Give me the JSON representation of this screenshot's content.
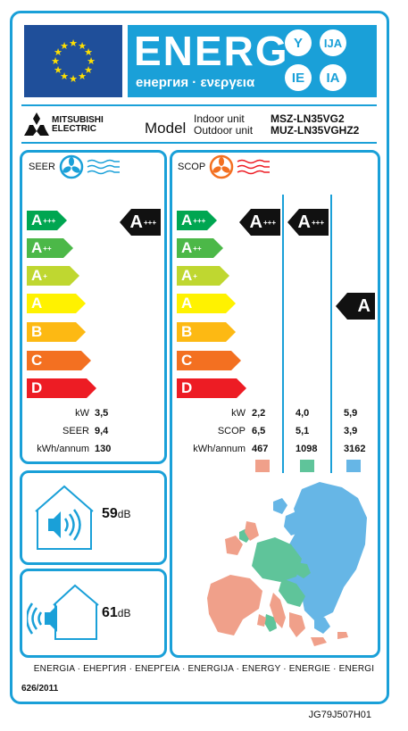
{
  "header": {
    "energy_word": "ENERG",
    "energy_sub": "енергия · ενεργεια",
    "lang_badges": [
      "Y",
      "IJA",
      "IE",
      "IA"
    ]
  },
  "brand": {
    "line1": "MITSUBISHI",
    "line2": "ELECTRIC"
  },
  "model": {
    "label": "Model",
    "indoor_label": "Indoor unit",
    "outdoor_label": "Outdoor unit",
    "indoor_code": "MSZ-LN35VG2",
    "outdoor_code": "MUZ-LN35VGHZ2"
  },
  "seer_panel": {
    "title": "SEER",
    "scale": [
      {
        "label": "A",
        "plus": "+++",
        "color": "#00a651"
      },
      {
        "label": "A",
        "plus": "++",
        "color": "#4cb848"
      },
      {
        "label": "A",
        "plus": "+",
        "color": "#bfd730"
      },
      {
        "label": "A",
        "plus": "",
        "color": "#fff200"
      },
      {
        "label": "B",
        "plus": "",
        "color": "#fdb913"
      },
      {
        "label": "C",
        "plus": "",
        "color": "#f37021"
      },
      {
        "label": "D",
        "plus": "",
        "color": "#ed1c24"
      }
    ],
    "rating": {
      "label": "A",
      "plus": "+++"
    },
    "rows": [
      {
        "label": "kW",
        "value": "3,5"
      },
      {
        "label": "SEER",
        "value": "9,4"
      },
      {
        "label": "kWh/annum",
        "value": "130"
      }
    ]
  },
  "scop_panel": {
    "title": "SCOP",
    "ratings": [
      {
        "label": "A",
        "plus": "+++"
      },
      {
        "label": "A",
        "plus": "+++"
      },
      {
        "label": "A",
        "plus": ""
      }
    ],
    "row_labels": [
      "kW",
      "SCOP",
      "kWh/annum"
    ],
    "columns": [
      {
        "values": [
          "2,2",
          "6,5",
          "467"
        ],
        "color": "#f0a08a"
      },
      {
        "values": [
          "4,0",
          "5,1",
          "1098"
        ],
        "color": "#5fc49a"
      },
      {
        "values": [
          "5,9",
          "3,9",
          "3162"
        ],
        "color": "#66b6e6"
      }
    ]
  },
  "noise": {
    "indoor": {
      "value": "59",
      "unit": "dB"
    },
    "outdoor": {
      "value": "61",
      "unit": "dB"
    }
  },
  "footer": {
    "languages": "ENERGIA · ЕНЕРГИЯ · ΕΝΕΡΓΕΙΑ · ENERGIJA · ENERGY · ENERGIE · ENERGI",
    "regulation": "626/2011",
    "code": "JG79J507H01"
  }
}
